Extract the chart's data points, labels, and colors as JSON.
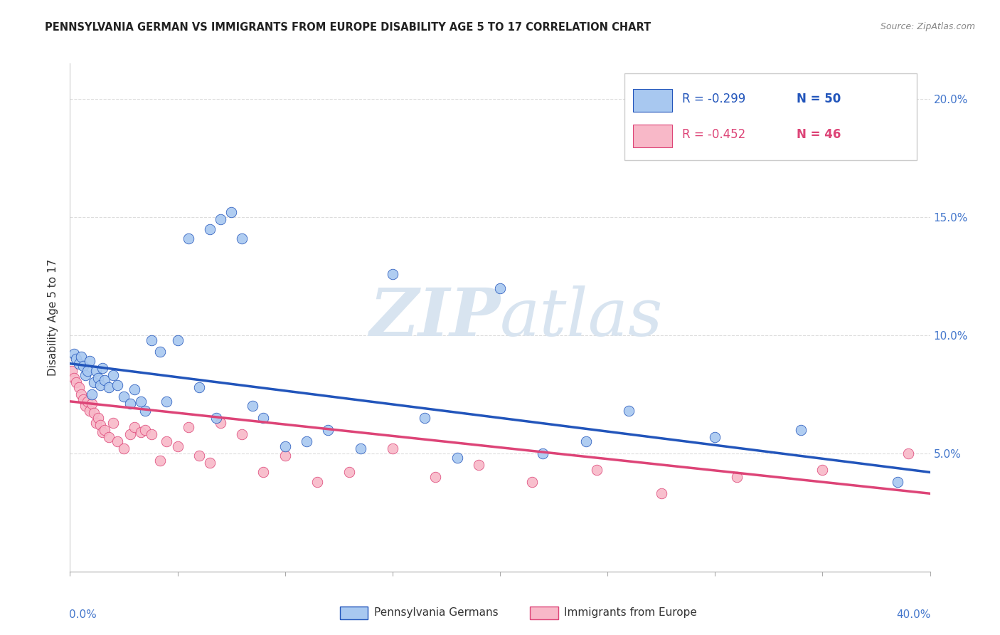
{
  "title": "PENNSYLVANIA GERMAN VS IMMIGRANTS FROM EUROPE DISABILITY AGE 5 TO 17 CORRELATION CHART",
  "source": "Source: ZipAtlas.com",
  "ylabel": "Disability Age 5 to 17",
  "yticks": [
    "5.0%",
    "10.0%",
    "15.0%",
    "20.0%"
  ],
  "ytick_vals": [
    0.05,
    0.1,
    0.15,
    0.2
  ],
  "legend_blue_label": "Pennsylvania Germans",
  "legend_pink_label": "Immigrants from Europe",
  "legend_blue_R": "R = -0.299",
  "legend_blue_N": "N = 50",
  "legend_pink_R": "R = -0.452",
  "legend_pink_N": "N = 46",
  "blue_scatter_color": "#A8C8F0",
  "pink_scatter_color": "#F8B8C8",
  "blue_line_color": "#2255BB",
  "pink_line_color": "#DD4477",
  "watermark_zip": "ZIP",
  "watermark_atlas": "atlas",
  "blue_x": [
    0.002,
    0.003,
    0.004,
    0.005,
    0.006,
    0.007,
    0.008,
    0.009,
    0.01,
    0.011,
    0.012,
    0.013,
    0.014,
    0.015,
    0.016,
    0.018,
    0.02,
    0.022,
    0.025,
    0.028,
    0.03,
    0.033,
    0.035,
    0.038,
    0.042,
    0.045,
    0.05,
    0.055,
    0.06,
    0.065,
    0.068,
    0.07,
    0.075,
    0.08,
    0.085,
    0.09,
    0.1,
    0.11,
    0.12,
    0.135,
    0.15,
    0.165,
    0.18,
    0.2,
    0.22,
    0.24,
    0.26,
    0.3,
    0.34,
    0.385
  ],
  "blue_y": [
    0.092,
    0.09,
    0.088,
    0.091,
    0.087,
    0.083,
    0.085,
    0.089,
    0.075,
    0.08,
    0.085,
    0.082,
    0.079,
    0.086,
    0.081,
    0.078,
    0.083,
    0.079,
    0.074,
    0.071,
    0.077,
    0.072,
    0.068,
    0.098,
    0.093,
    0.072,
    0.098,
    0.141,
    0.078,
    0.145,
    0.065,
    0.149,
    0.152,
    0.141,
    0.07,
    0.065,
    0.053,
    0.055,
    0.06,
    0.052,
    0.126,
    0.065,
    0.048,
    0.12,
    0.05,
    0.055,
    0.068,
    0.057,
    0.06,
    0.038
  ],
  "pink_x": [
    0.001,
    0.002,
    0.003,
    0.004,
    0.005,
    0.006,
    0.007,
    0.008,
    0.009,
    0.01,
    0.011,
    0.012,
    0.013,
    0.014,
    0.015,
    0.016,
    0.018,
    0.02,
    0.022,
    0.025,
    0.028,
    0.03,
    0.033,
    0.035,
    0.038,
    0.042,
    0.045,
    0.05,
    0.055,
    0.06,
    0.065,
    0.07,
    0.08,
    0.09,
    0.1,
    0.115,
    0.13,
    0.15,
    0.17,
    0.19,
    0.215,
    0.245,
    0.275,
    0.31,
    0.35,
    0.39
  ],
  "pink_y": [
    0.085,
    0.082,
    0.08,
    0.078,
    0.075,
    0.073,
    0.07,
    0.072,
    0.068,
    0.071,
    0.067,
    0.063,
    0.065,
    0.062,
    0.059,
    0.06,
    0.057,
    0.063,
    0.055,
    0.052,
    0.058,
    0.061,
    0.059,
    0.06,
    0.058,
    0.047,
    0.055,
    0.053,
    0.061,
    0.049,
    0.046,
    0.063,
    0.058,
    0.042,
    0.049,
    0.038,
    0.042,
    0.052,
    0.04,
    0.045,
    0.038,
    0.043,
    0.033,
    0.04,
    0.043,
    0.05
  ],
  "xmin": 0.0,
  "xmax": 0.4,
  "ymin": 0.0,
  "ymax": 0.215,
  "blue_line_x0": 0.0,
  "blue_line_x1": 0.4,
  "blue_line_y0": 0.088,
  "blue_line_y1": 0.042,
  "pink_line_x0": 0.0,
  "pink_line_x1": 0.4,
  "pink_line_y0": 0.072,
  "pink_line_y1": 0.033
}
